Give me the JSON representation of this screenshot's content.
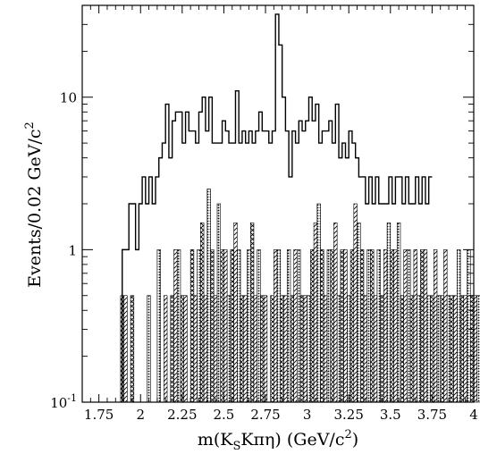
{
  "chart_data": {
    "type": "histogram",
    "xlabel": "m(K",
    "xlabel_sub": "S",
    "xlabel_mid": "Kπη) (GeV/c",
    "xlabel_sup": "2",
    "xlabel_end": ")",
    "ylabel": "Events/0.02 GeV/c",
    "ylabel_sup": "2",
    "xlim": [
      1.65,
      4.0
    ],
    "ylim": [
      0.1,
      40
    ],
    "y_scale": "log",
    "bin_width": 0.02,
    "x_ticks": [
      {
        "value": 1.75,
        "label": "1.75"
      },
      {
        "value": 2.0,
        "label": "2"
      },
      {
        "value": 2.25,
        "label": "2.25"
      },
      {
        "value": 2.5,
        "label": "2.5"
      },
      {
        "value": 2.75,
        "label": "2.75"
      },
      {
        "value": 3.0,
        "label": "3"
      },
      {
        "value": 3.25,
        "label": "3.25"
      },
      {
        "value": 3.5,
        "label": "3.5"
      },
      {
        "value": 3.75,
        "label": "3.75"
      },
      {
        "value": 4.0,
        "label": "4"
      }
    ],
    "y_ticks": [
      {
        "value": 0.1,
        "base": "10",
        "exp": "-1"
      },
      {
        "value": 1,
        "base": "1",
        "exp": ""
      },
      {
        "value": 10,
        "base": "10",
        "exp": ""
      }
    ],
    "data_start": 1.89,
    "data_values": [
      1,
      1,
      2,
      2,
      1,
      2,
      3,
      2,
      3,
      2,
      3,
      4,
      5,
      9,
      4,
      7,
      8,
      8,
      5,
      8,
      6,
      6,
      5,
      8,
      10,
      6,
      10,
      5,
      5,
      5,
      7,
      6,
      5,
      5,
      11,
      5,
      6,
      5,
      6,
      5,
      6,
      8,
      6,
      6,
      5,
      6,
      35,
      22,
      10,
      6,
      3,
      6,
      5,
      7,
      6,
      7,
      10,
      7,
      9,
      5,
      6,
      6,
      7,
      5,
      9,
      4,
      5,
      4,
      6,
      5,
      4,
      3,
      3,
      2,
      3,
      2,
      3,
      2,
      2,
      2,
      3,
      2,
      3,
      3,
      2,
      3,
      2,
      2,
      3,
      2,
      3,
      2,
      3
    ],
    "background_start": 1.88,
    "background_values": [
      0.5,
      0.5,
      0,
      0.5,
      0,
      0,
      0,
      0,
      0.5,
      0,
      0,
      1,
      0,
      0.5,
      0,
      0.5,
      1,
      1,
      0.5,
      0.5,
      0,
      1,
      0.5,
      1,
      1.5,
      0.5,
      2.5,
      1,
      0.5,
      2,
      1,
      1,
      0.5,
      1,
      1.5,
      1,
      0.5,
      0.5,
      1,
      1.5,
      0.5,
      1,
      0.5,
      0.5,
      0,
      0.5,
      1,
      1,
      0.5,
      0.5,
      1,
      0.5,
      1,
      1,
      0.5,
      0.5,
      0.5,
      1,
      1.5,
      2,
      1,
      0.5,
      1,
      1,
      1.5,
      0.5,
      1,
      1,
      0.5,
      1,
      2,
      1.5,
      1,
      0.5,
      1,
      1,
      0.5,
      1,
      0.5,
      1,
      1.5,
      1,
      1,
      1.5,
      0.5,
      1,
      1,
      0.5,
      1,
      0.5,
      1,
      1,
      0.5,
      0.5,
      1,
      0.5,
      0.5,
      1,
      0.5,
      0.5,
      0.5,
      1,
      0.5,
      0.5,
      1,
      0.5,
      0.5,
      0.5,
      0.5
    ],
    "pattern_cycle": [
      "crosshatch",
      "diagonal",
      "dots"
    ]
  }
}
